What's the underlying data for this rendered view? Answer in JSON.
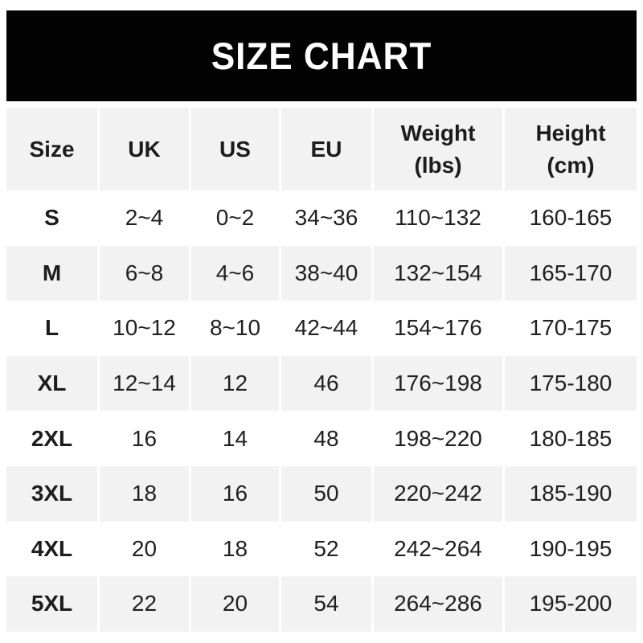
{
  "banner": {
    "title": "SIZE CHART"
  },
  "table": {
    "header_lines": [
      [
        "Size",
        ""
      ],
      [
        "UK",
        ""
      ],
      [
        "US",
        ""
      ],
      [
        "EU",
        ""
      ],
      [
        "Weight",
        "(lbs)"
      ],
      [
        "Height",
        "(cm)"
      ]
    ]
  },
  "chart_data": {
    "type": "table",
    "title": "SIZE CHART",
    "columns": [
      "Size",
      "UK",
      "US",
      "EU",
      "Weight (lbs)",
      "Height (cm)"
    ],
    "rows": [
      [
        "S",
        "2~4",
        "0~2",
        "34~36",
        "110~132",
        "160-165"
      ],
      [
        "M",
        "6~8",
        "4~6",
        "38~40",
        "132~154",
        "165-170"
      ],
      [
        "L",
        "10~12",
        "8~10",
        "42~44",
        "154~176",
        "170-175"
      ],
      [
        "XL",
        "12~14",
        "12",
        "46",
        "176~198",
        "175-180"
      ],
      [
        "2XL",
        "16",
        "14",
        "48",
        "198~220",
        "180-185"
      ],
      [
        "3XL",
        "18",
        "16",
        "50",
        "220~242",
        "185-190"
      ],
      [
        "4XL",
        "20",
        "18",
        "52",
        "242~264",
        "190-195"
      ],
      [
        "5XL",
        "22",
        "20",
        "54",
        "264~286",
        "195-200"
      ]
    ],
    "layout": {
      "alternating_row_colors": [
        "#ffffff",
        "#f2f2f2"
      ],
      "header_bg": "#f2f2f2",
      "banner_bg": "#030303",
      "banner_text_color": "#ffffff",
      "text_color": "#212121"
    }
  }
}
